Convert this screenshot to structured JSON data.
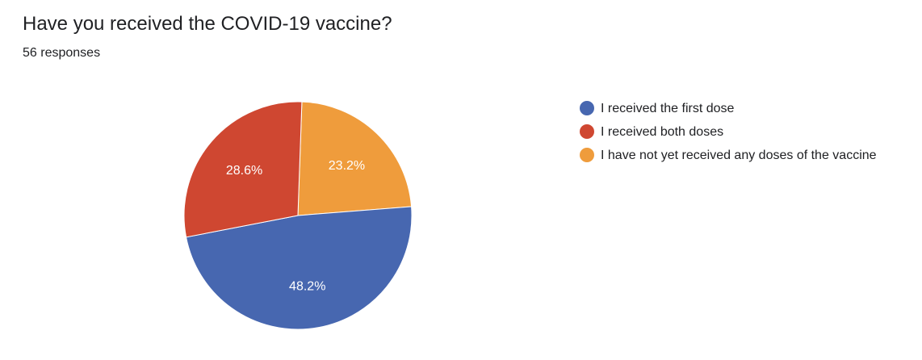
{
  "header": {
    "title": "Have you received the COVID-19 vaccine?",
    "subtitle": "56 responses"
  },
  "chart_data": {
    "type": "pie",
    "title": "Have you received the COVID-19 vaccine?",
    "total_responses": 56,
    "slices": [
      {
        "label": "I received the first dose",
        "value": 48.2,
        "display": "48.2%",
        "color": "#4767B0"
      },
      {
        "label": "I received both doses",
        "value": 28.6,
        "display": "28.6%",
        "color": "#CF4731"
      },
      {
        "label": "I have not yet received any doses of the vaccine",
        "value": 23.2,
        "display": "23.2%",
        "color": "#EF9C3C"
      }
    ],
    "legend_position": "right"
  }
}
